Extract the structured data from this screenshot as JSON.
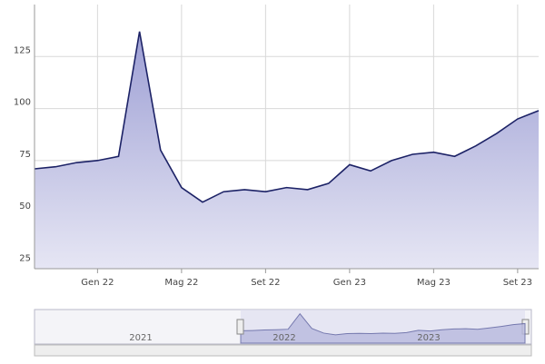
{
  "chart_data": {
    "type": "area",
    "x": [
      "2021-10",
      "2021-11",
      "2021-12",
      "2022-01",
      "2022-02",
      "2022-03",
      "2022-04",
      "2022-05",
      "2022-06",
      "2022-07",
      "2022-08",
      "2022-09",
      "2022-10",
      "2022-11",
      "2022-12",
      "2023-01",
      "2023-02",
      "2023-03",
      "2023-04",
      "2023-05",
      "2023-06",
      "2023-07",
      "2023-08",
      "2023-09",
      "2023-10"
    ],
    "values": [
      71,
      72,
      74,
      75,
      77,
      137,
      80,
      62,
      55,
      60,
      61,
      60,
      62,
      61,
      64,
      73,
      70,
      75,
      78,
      79,
      77,
      82,
      88,
      95,
      99
    ],
    "color": "#1c2266",
    "fill": "#b9badf",
    "xlim": [
      "2021-10",
      "2023-10"
    ],
    "xticks": [
      {
        "value": "2022-01",
        "label": "Gen 22"
      },
      {
        "value": "2022-05",
        "label": "Mag 22"
      },
      {
        "value": "2022-09",
        "label": "Set 22"
      },
      {
        "value": "2023-01",
        "label": "Gen 23"
      },
      {
        "value": "2023-05",
        "label": "Mag 23"
      },
      {
        "value": "2023-09",
        "label": "Set 23"
      }
    ],
    "ylim": [
      23,
      150
    ],
    "yticks": [
      25,
      50,
      75,
      100,
      125
    ],
    "grid": true,
    "navigator": {
      "labels": [
        "2021",
        "2022",
        "2023"
      ]
    }
  }
}
